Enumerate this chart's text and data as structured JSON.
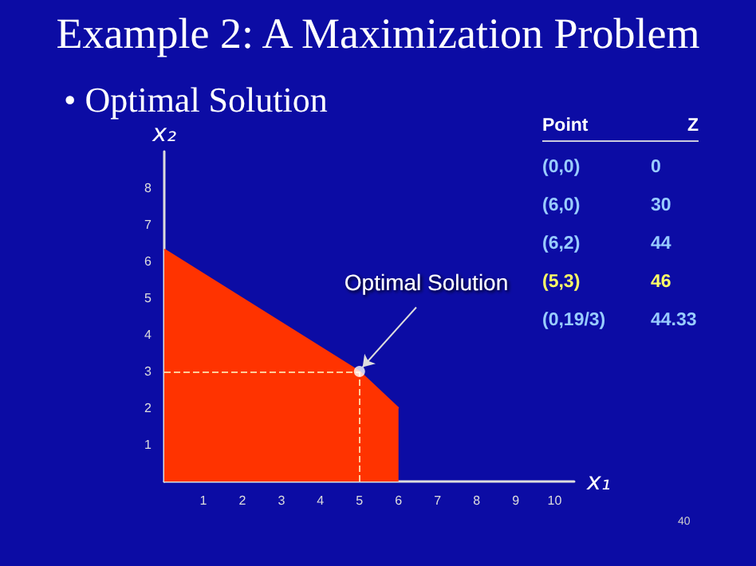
{
  "chart_data": {
    "type": "area",
    "title": "Example 2: A Maximization Problem",
    "subtitle": "• Optimal Solution",
    "xlabel": "x₁",
    "ylabel": "x₂",
    "xlim": [
      0,
      10.5
    ],
    "xticks": [
      1,
      2,
      3,
      4,
      5,
      6,
      7,
      8,
      9,
      10
    ],
    "ylim": [
      0,
      9
    ],
    "yticks": [
      1,
      2,
      3,
      4,
      5,
      6,
      7,
      8
    ],
    "series": [
      {
        "x": [
          0,
          5,
          6
        ],
        "values": [
          6.33,
          3,
          2
        ],
        "color": "#ff3300"
      },
      {
        "type": "scatter",
        "x": [
          5
        ],
        "values": [
          3
        ],
        "color": "#ffffff",
        "marker": "circle"
      }
    ],
    "ref_lines": [
      {
        "axis": "y",
        "value": 3,
        "line_style": "dashed",
        "color": "#ffcc99"
      },
      {
        "axis": "x",
        "value": 5,
        "line_style": "dashed",
        "color": "#ffcc99"
      }
    ],
    "annotations": [
      {
        "text": "Optimal Solution",
        "x": 5,
        "y": 3
      },
      "Point",
      "Z",
      "(0,0)",
      "0",
      "(6,0)",
      "30",
      "(6,2)",
      "44",
      "(5,3)",
      "46",
      "(0,19/3)",
      "44.33",
      "40"
    ],
    "grid": false
  }
}
